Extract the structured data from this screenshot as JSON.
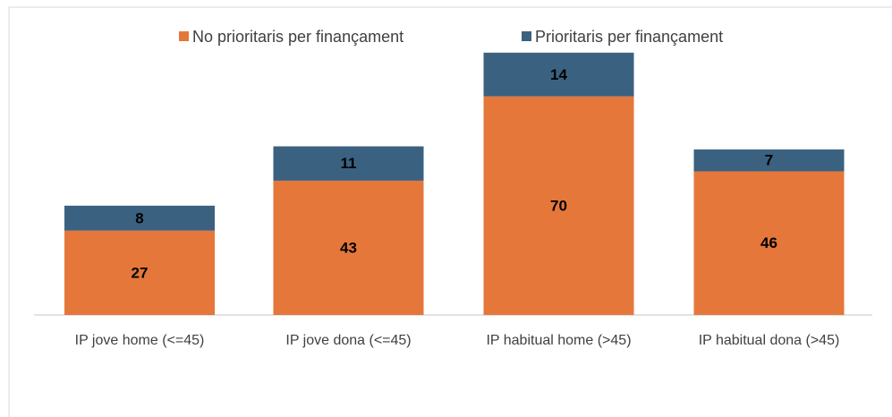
{
  "chart_data": {
    "type": "stacked_bar",
    "categories": [
      "IP jove home (<=45)",
      "IP jove dona  (<=45)",
      "IP habitual home  (>45)",
      "IP habitual dona (>45)"
    ],
    "series": [
      {
        "name": "No prioritaris per finançament",
        "color": "#e5773b",
        "values": [
          27,
          43,
          70,
          46
        ]
      },
      {
        "name": "Prioritaris per finançament",
        "color": "#3b6181",
        "values": [
          8,
          11,
          14,
          7
        ]
      }
    ],
    "legend": "top"
  }
}
